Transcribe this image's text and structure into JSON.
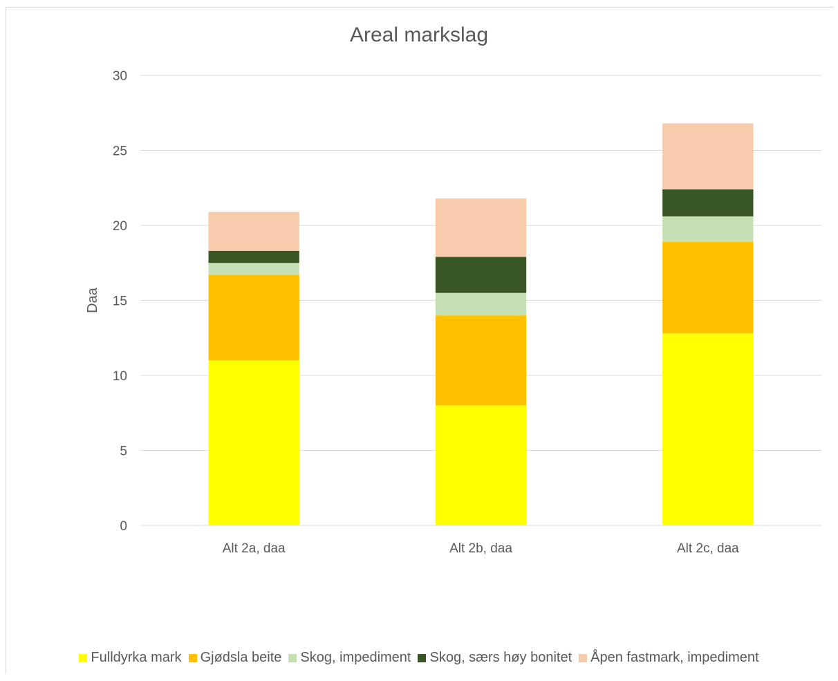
{
  "chart_data": {
    "type": "bar",
    "stacked": true,
    "title": "Areal markslag",
    "xlabel": "",
    "ylabel": "Daa",
    "ylim": [
      0,
      30
    ],
    "yticks": [
      0,
      5,
      10,
      15,
      20,
      25,
      30
    ],
    "categories": [
      "Alt 2a, daa",
      "Alt 2b, daa",
      "Alt 2c, daa"
    ],
    "grid": true,
    "legend_position": "bottom",
    "series": [
      {
        "name": "Fulldyrka mark",
        "color": "#ffff00",
        "values": [
          11.0,
          8.0,
          12.8
        ]
      },
      {
        "name": "Gjødsla beite",
        "color": "#ffc000",
        "values": [
          5.7,
          6.0,
          6.1
        ]
      },
      {
        "name": "Skog, impediment",
        "color": "#c5e0b4",
        "values": [
          0.8,
          1.5,
          1.7
        ]
      },
      {
        "name": "Skog, særs høy bonitet",
        "color": "#375623",
        "values": [
          0.8,
          2.4,
          1.8
        ]
      },
      {
        "name": "Åpen fastmark, impediment",
        "color": "#f8cbad",
        "values": [
          2.6,
          3.9,
          4.4
        ]
      }
    ]
  }
}
